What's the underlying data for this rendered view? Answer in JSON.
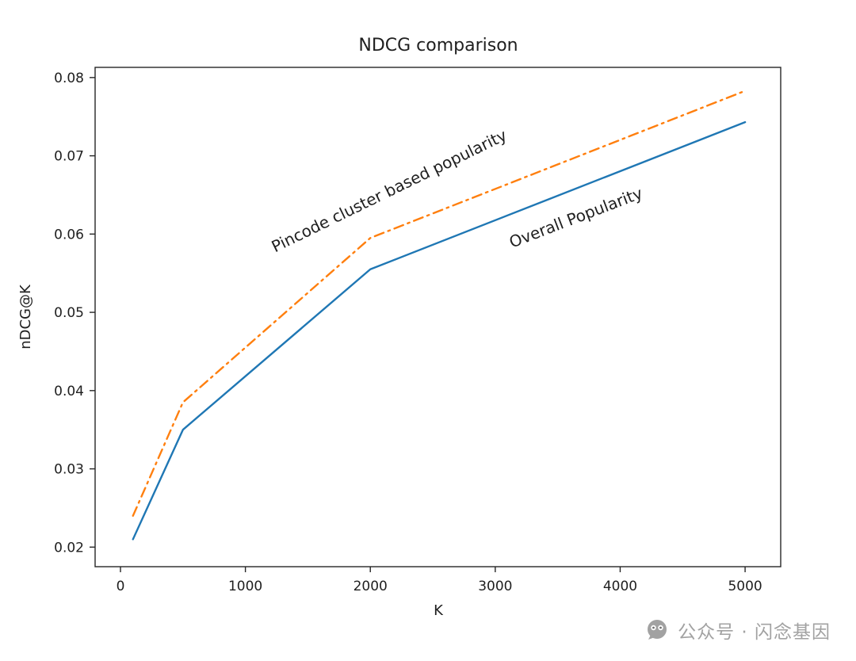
{
  "chart_data": {
    "type": "line",
    "title": "NDCG comparison",
    "xlabel": "K",
    "ylabel": "nDCG@K",
    "xlim": [
      -203,
      5285
    ],
    "ylim": [
      0.0175,
      0.0813
    ],
    "x_ticks": [
      0,
      1000,
      2000,
      3000,
      4000,
      5000
    ],
    "y_ticks": [
      0.02,
      0.03,
      0.04,
      0.05,
      0.06,
      0.07,
      0.08
    ],
    "grid": false,
    "legend": "inline-annotations",
    "x": [
      100,
      500,
      2000,
      5000
    ],
    "series": [
      {
        "name": "Overall Popularity",
        "values": [
          0.021,
          0.035,
          0.0555,
          0.0743
        ],
        "color": "#1f77b4",
        "style": "solid"
      },
      {
        "name": "Pincode cluster based popularity",
        "values": [
          0.024,
          0.0385,
          0.0595,
          0.0783
        ],
        "color": "#ff7f0e",
        "style": "dashdot"
      }
    ],
    "annotations": [
      {
        "text": "Pincode cluster based popularity",
        "x": 494,
        "y": 247,
        "rotation": -26
      },
      {
        "text": "Overall Popularity",
        "x": 729,
        "y": 281,
        "rotation": -21
      }
    ],
    "axis_color": "#262626"
  },
  "watermark": {
    "text": "公众号 · 闪念基因",
    "color": "#a2a2a2"
  }
}
